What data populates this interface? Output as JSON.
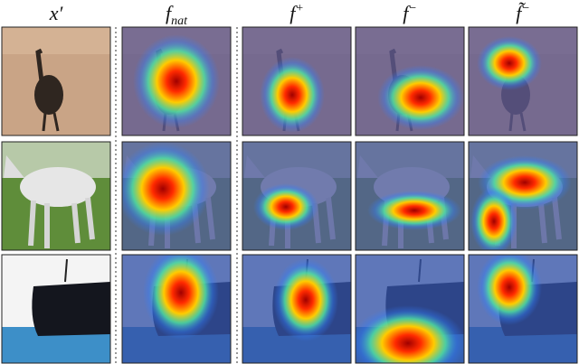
{
  "figure": {
    "headers": [
      {
        "base": "x′"
      },
      {
        "base": "f",
        "sub": "nat"
      },
      {
        "base": "f",
        "sup": "+"
      },
      {
        "base": "f",
        "sup": "−"
      },
      {
        "base": "f̃",
        "sup": "−"
      }
    ]
  }
}
